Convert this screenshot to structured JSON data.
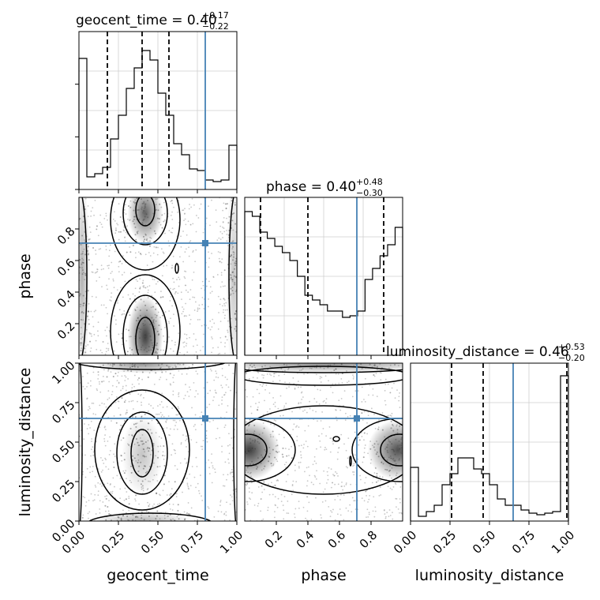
{
  "chart_data": {
    "type": "corner",
    "parameters": [
      "geocent_time",
      "phase",
      "luminosity_distance"
    ],
    "truths": {
      "geocent_time": 0.8,
      "phase": 0.71,
      "luminosity_distance": 0.65
    },
    "truth_color": "#4682b4",
    "titles": [
      {
        "name": "geocent_time",
        "eq": " = 0.40",
        "plus": "+0.17",
        "minus": "−0.22"
      },
      {
        "name": "phase",
        "eq": " = 0.40",
        "plus": "+0.48",
        "minus": "−0.30"
      },
      {
        "name": "luminosity_distance",
        "eq": " = 0.46",
        "plus": "+0.53",
        "minus": "−0.20"
      }
    ],
    "histograms": [
      {
        "parameter": "geocent_time",
        "range": [
          0,
          1
        ],
        "counts": [
          0.83,
          0.08,
          0.1,
          0.14,
          0.32,
          0.47,
          0.64,
          0.77,
          0.88,
          0.82,
          0.61,
          0.47,
          0.29,
          0.22,
          0.13,
          0.12,
          0.06,
          0.05,
          0.06,
          0.28
        ],
        "quantiles": [
          0.18,
          0.4,
          0.57
        ]
      },
      {
        "parameter": "phase",
        "range": [
          0,
          1
        ],
        "counts": [
          0.91,
          0.88,
          0.78,
          0.74,
          0.69,
          0.65,
          0.6,
          0.5,
          0.38,
          0.35,
          0.32,
          0.28,
          0.28,
          0.24,
          0.25,
          0.28,
          0.48,
          0.55,
          0.63,
          0.7,
          0.81
        ],
        "quantiles": [
          0.1,
          0.4,
          0.88
        ]
      },
      {
        "parameter": "luminosity_distance",
        "range": [
          0,
          1
        ],
        "counts": [
          0.34,
          0.03,
          0.06,
          0.1,
          0.23,
          0.3,
          0.4,
          0.4,
          0.33,
          0.3,
          0.23,
          0.14,
          0.1,
          0.1,
          0.07,
          0.05,
          0.04,
          0.05,
          0.06,
          0.92
        ],
        "quantiles": [
          0.26,
          0.46,
          0.99
        ]
      }
    ],
    "axes": {
      "geocent_time": {
        "ticks": [
          "0.00",
          "0.25",
          "0.50",
          "0.75",
          "1.00"
        ],
        "values": [
          0,
          0.25,
          0.5,
          0.75,
          1.0
        ],
        "range": [
          0,
          1
        ]
      },
      "phase": {
        "ticks": [
          "0.2",
          "0.4",
          "0.6",
          "0.8"
        ],
        "values": [
          0.2,
          0.4,
          0.6,
          0.8
        ],
        "range": [
          0,
          1
        ]
      },
      "luminosity_distance": {
        "ticks": [
          "0.00",
          "0.25",
          "0.50",
          "0.75",
          "1.00"
        ],
        "values": [
          0,
          0.25,
          0.5,
          0.75,
          1.0
        ],
        "range": [
          0,
          1
        ]
      }
    },
    "xlabels": [
      "geocent_time",
      "phase",
      "luminosity_distance"
    ],
    "ylabels": [
      "phase",
      "luminosity_distance"
    ]
  }
}
